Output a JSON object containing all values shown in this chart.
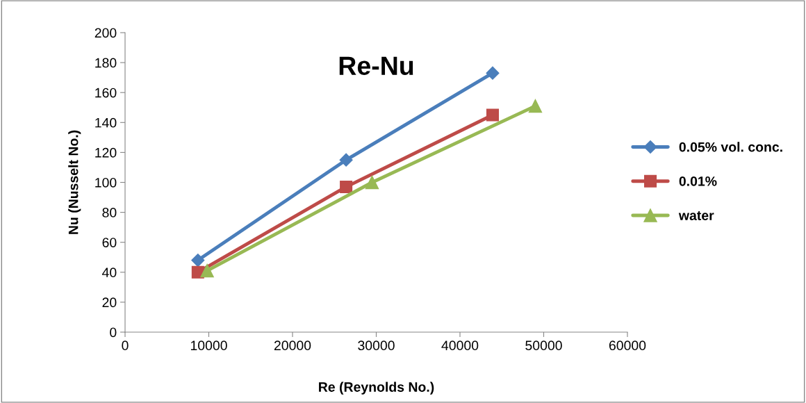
{
  "chart_data": {
    "type": "line",
    "title": "Re-Nu",
    "xlabel": "Re (Reynolds No.)",
    "ylabel": "Nu (Nusselt No.)",
    "xlim": [
      0,
      60000
    ],
    "xticks": [
      0,
      10000,
      20000,
      30000,
      40000,
      50000,
      60000
    ],
    "ylim": [
      0,
      200
    ],
    "yticks": [
      0,
      20,
      40,
      60,
      80,
      100,
      120,
      140,
      160,
      180,
      200
    ],
    "grid": false,
    "legend": "right",
    "line_style": "solid",
    "series": [
      {
        "name": "0.05% vol. conc.",
        "color": "#4a7ebb",
        "marker": "diamond",
        "x": [
          8700,
          26400,
          43900
        ],
        "values": [
          48,
          115,
          173
        ]
      },
      {
        "name": "0.01%",
        "color": "#be4b48",
        "marker": "square",
        "x": [
          8700,
          26400,
          43900
        ],
        "values": [
          40,
          97,
          145
        ]
      },
      {
        "name": "water",
        "color": "#98b954",
        "marker": "triangle",
        "x": [
          9800,
          29500,
          49000
        ],
        "values": [
          41,
          100,
          151
        ]
      }
    ]
  }
}
